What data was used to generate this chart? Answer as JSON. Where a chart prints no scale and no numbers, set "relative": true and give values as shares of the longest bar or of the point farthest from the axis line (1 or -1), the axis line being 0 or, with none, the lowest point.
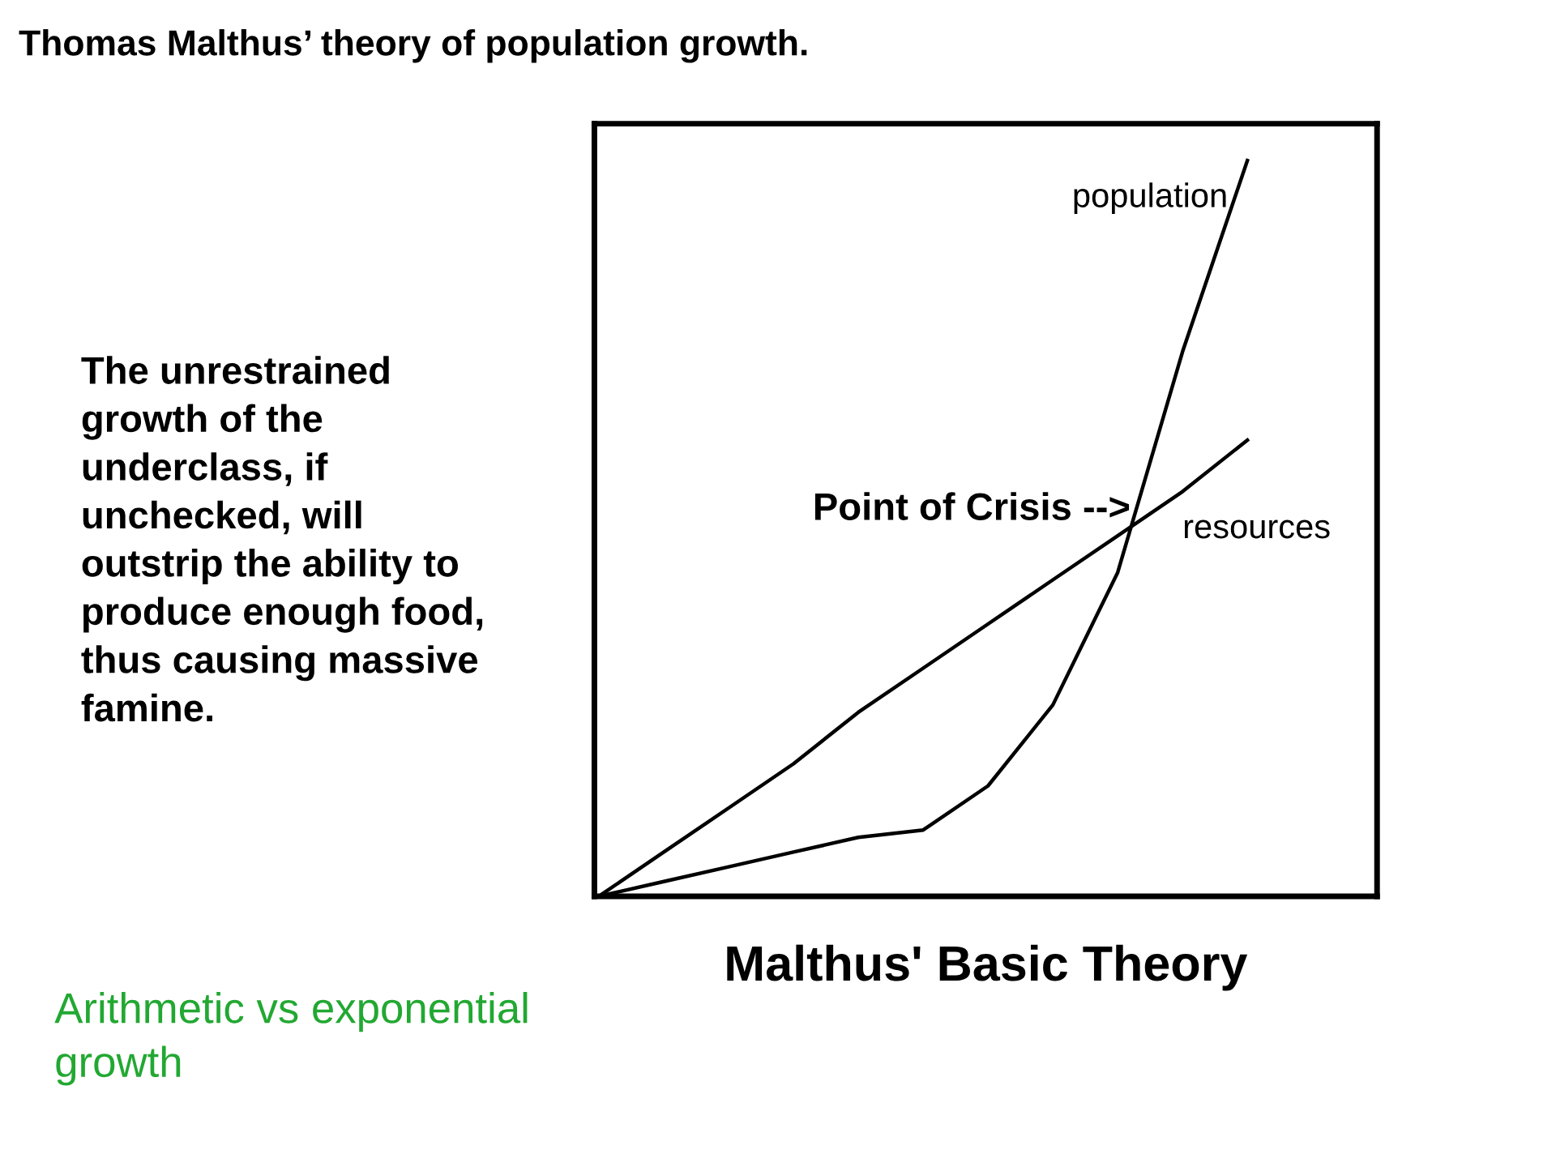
{
  "chart_data": {
    "type": "line",
    "relative": true,
    "title": "Thomas Malthus’ theory of population growth.",
    "xlabel": "Malthus' Basic Theory",
    "annotations": [
      "The unrestrained growth of the underclass, if unchecked, will outstrip the ability to produce enough food, thus causing massive famine.",
      "Point of Crisis -->",
      "Arithmetic vs exponential growth"
    ],
    "categories": [
      null,
      null,
      null,
      null,
      null,
      null,
      null,
      null,
      null,
      null,
      null,
      null,
      null
    ],
    "series": [
      {
        "name": "population",
        "color": "#000000",
        "values": [
          0,
          0.02,
          0.04,
          0.06,
          0.08,
          0.09,
          0.15,
          0.26,
          0.44,
          0.74,
          1,
          null,
          null
        ]
      },
      {
        "name": "resources",
        "color": "#000000",
        "values": [
          0,
          0.06,
          0.12,
          0.18,
          0.25,
          0.31,
          0.37,
          0.43,
          0.49,
          0.55,
          0.62,
          null,
          null
        ]
      }
    ],
    "grid": false,
    "legend": false,
    "marker": "none",
    "line_style": "solid"
  }
}
